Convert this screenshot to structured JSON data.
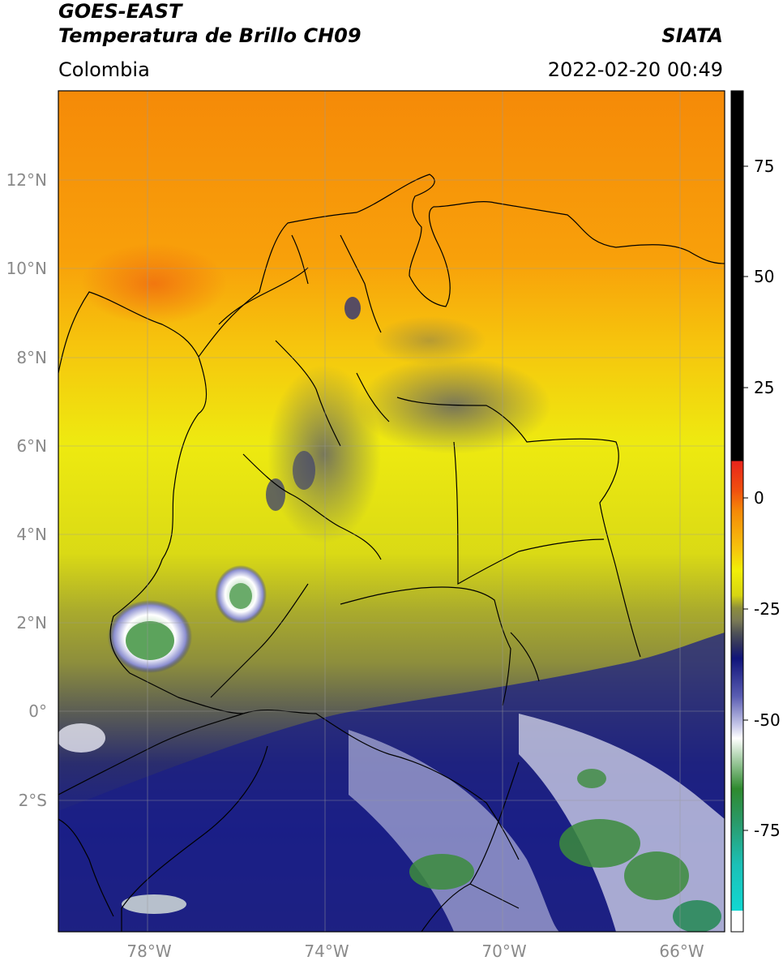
{
  "header": {
    "satellite": "GOES-EAST",
    "product": "Temperatura de Brillo CH09",
    "region": "Colombia",
    "agency": "SIATA",
    "datetime": "2022-02-20 00:49"
  },
  "map": {
    "lat_labels": [
      "12°N",
      "10°N",
      "8°N",
      "6°N",
      "4°N",
      "2°N",
      "0°",
      "2°S"
    ],
    "lon_labels": [
      "78°W",
      "74°W",
      "70°W",
      "66°W"
    ]
  },
  "colorbar": {
    "ticks": [
      "75",
      "50",
      "25",
      "0",
      "-25",
      "-50",
      "-75"
    ],
    "colors": {
      "black": "#000000",
      "red": "#e8241c",
      "orange": "#f58a08",
      "yellow": "#f2ef07",
      "olive": "#8d8e3c",
      "gray": "#4e5157",
      "navy": "#10147a",
      "white": "#ffffff",
      "green": "#2f8a2f",
      "cyan": "#11d8d2"
    }
  }
}
